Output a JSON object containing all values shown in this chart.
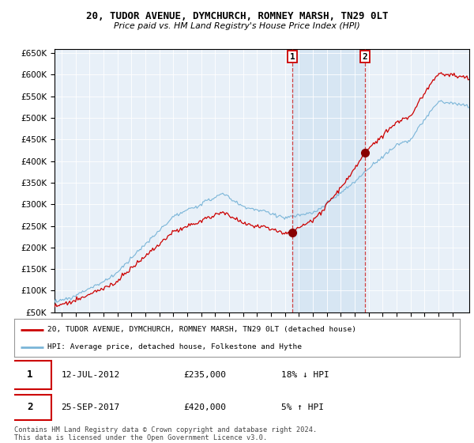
{
  "title": "20, TUDOR AVENUE, DYMCHURCH, ROMNEY MARSH, TN29 0LT",
  "subtitle": "Price paid vs. HM Land Registry's House Price Index (HPI)",
  "legend_line1": "20, TUDOR AVENUE, DYMCHURCH, ROMNEY MARSH, TN29 0LT (detached house)",
  "legend_line2": "HPI: Average price, detached house, Folkestone and Hythe",
  "event1_date": "12-JUL-2012",
  "event1_price": "£235,000",
  "event1_pct": "18% ↓ HPI",
  "event1_year": 2012.53,
  "event1_value": 235000,
  "event2_date": "25-SEP-2017",
  "event2_price": "£420,000",
  "event2_pct": "5% ↑ HPI",
  "event2_year": 2017.73,
  "event2_value": 420000,
  "hpi_color": "#7ab5d8",
  "price_color": "#cc0000",
  "shade_color": "#ddeeff",
  "plot_bg_color": "#e8f0f8",
  "footer": "Contains HM Land Registry data © Crown copyright and database right 2024.\nThis data is licensed under the Open Government Licence v3.0.",
  "ylim": [
    50000,
    660000
  ],
  "yticks": [
    50000,
    100000,
    150000,
    200000,
    250000,
    300000,
    350000,
    400000,
    450000,
    500000,
    550000,
    600000,
    650000
  ],
  "xlim_start": 1995.5,
  "xlim_end": 2025.2
}
